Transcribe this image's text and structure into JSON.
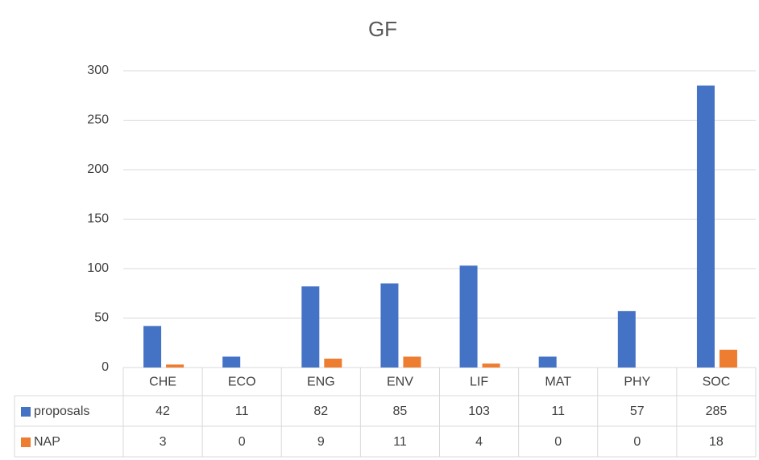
{
  "chart_data": {
    "type": "bar",
    "title": "GF",
    "categories": [
      "CHE",
      "ECO",
      "ENG",
      "ENV",
      "LIF",
      "MAT",
      "PHY",
      "SOC"
    ],
    "series": [
      {
        "name": "proposals",
        "color": "#4472c4",
        "values": [
          42,
          11,
          82,
          85,
          103,
          11,
          57,
          285
        ]
      },
      {
        "name": "NAP",
        "color": "#ed7d31",
        "values": [
          3,
          0,
          9,
          11,
          4,
          0,
          0,
          18
        ]
      }
    ],
    "ylim": [
      0,
      300
    ],
    "yticks": [
      0,
      50,
      100,
      150,
      200,
      250,
      300
    ],
    "grid": true,
    "data_table": true
  }
}
